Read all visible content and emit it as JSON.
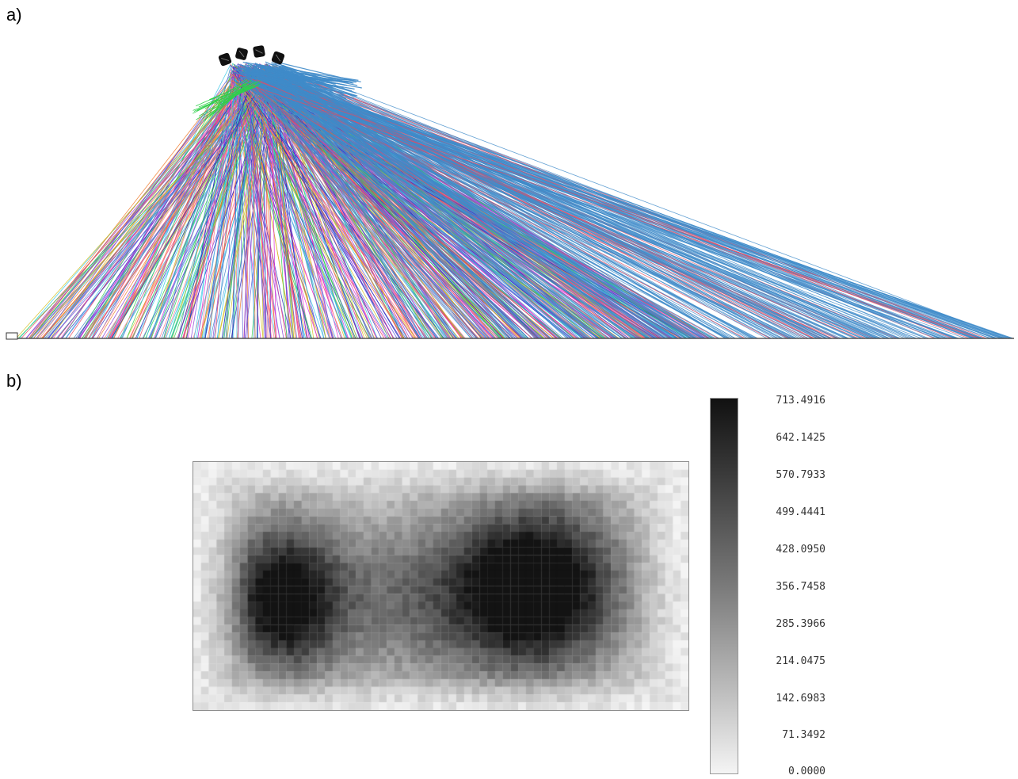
{
  "panels": {
    "a_label": "a)",
    "b_label": "b)"
  },
  "ray_colors": [
    "#e8485f",
    "#2fd04a",
    "#3f86c8",
    "#8a3fd6",
    "#e02ad4",
    "#d4c020",
    "#33c7e6",
    "#f07a2a",
    "#5b5bd8",
    "#4aa3e0",
    "#ff6f8f",
    "#2a2ac0"
  ],
  "colorbar": {
    "ticks": [
      "713.4916",
      "642.1425",
      "570.7933",
      "499.4441",
      "428.0950",
      "356.7458",
      "285.3966",
      "214.0475",
      "142.6983",
      "71.3492",
      "0.0000"
    ],
    "min": 0.0,
    "max": 713.4916,
    "gradient": [
      "#f4f4f4",
      "#111111"
    ]
  }
}
